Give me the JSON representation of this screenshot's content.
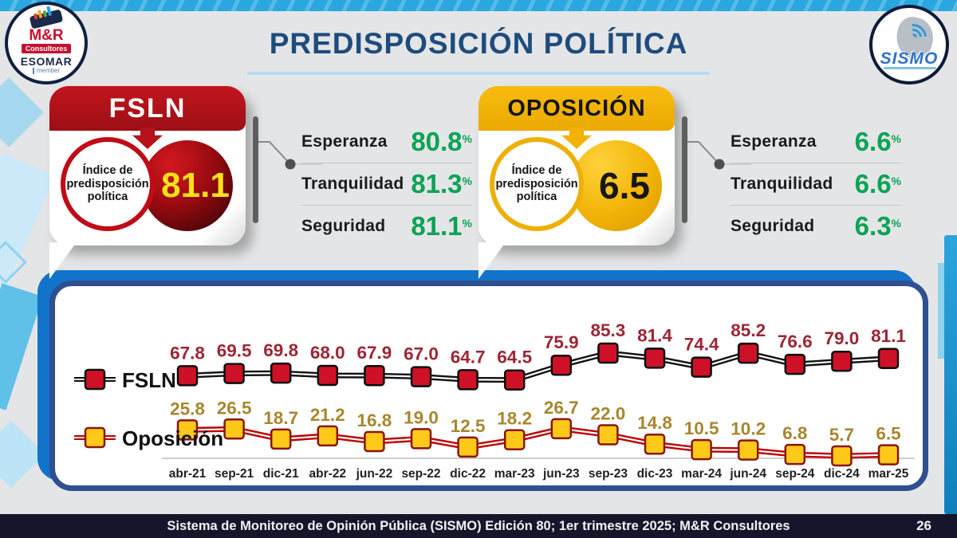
{
  "header": {
    "title": "PREDISPOSICIÓN POLÍTICA"
  },
  "logos": {
    "mr": {
      "name": "M&R",
      "line2": "Consultores",
      "line3": "ESOMAR",
      "line4": "member"
    },
    "sismo": {
      "name": "SISMO"
    }
  },
  "cards": {
    "fsln": {
      "title": "FSLN",
      "index_label": "Índice de predisposición política",
      "index_value": "81.1",
      "stats": [
        {
          "label": "Esperanza",
          "value": "80.8",
          "unit": "%"
        },
        {
          "label": "Tranquilidad",
          "value": "81.3",
          "unit": "%"
        },
        {
          "label": "Seguridad",
          "value": "81.1",
          "unit": "%"
        }
      ],
      "colors": {
        "primary": "#B5121B",
        "number": "#FFE11A"
      }
    },
    "oposicion": {
      "title": "OPOSICIÓN",
      "index_label": "Índice de predisposición política",
      "index_value": "6.5",
      "stats": [
        {
          "label": "Esperanza",
          "value": "6.6",
          "unit": "%"
        },
        {
          "label": "Tranquilidad",
          "value": "6.6",
          "unit": "%"
        },
        {
          "label": "Seguridad",
          "value": "6.3",
          "unit": "%"
        }
      ],
      "colors": {
        "primary": "#F2B306",
        "number": "#161616"
      }
    }
  },
  "chart_data": {
    "type": "line",
    "title": "",
    "xlabel": "",
    "ylabel": "",
    "grid": false,
    "legend_position": "left",
    "value_labels": true,
    "categories": [
      "abr-21",
      "sep-21",
      "dic-21",
      "abr-22",
      "jun-22",
      "sep-22",
      "dic-22",
      "mar-23",
      "jun-23",
      "sep-23",
      "dic-23",
      "mar-24",
      "jun-24",
      "sep-24",
      "dic-24",
      "mar-25"
    ],
    "series": [
      {
        "name": "FSLN",
        "values": [
          67.8,
          69.5,
          69.8,
          68.0,
          67.9,
          67.0,
          64.7,
          64.5,
          75.9,
          85.3,
          81.4,
          74.4,
          85.2,
          76.6,
          79.0,
          81.1
        ],
        "line_color": "#111111",
        "marker_color": "#CE1126",
        "marker_stroke": "#0D0D0D",
        "label_color": "#9E2433"
      },
      {
        "name": "Oposición",
        "values": [
          25.8,
          26.5,
          18.7,
          21.2,
          16.8,
          19.0,
          12.5,
          18.2,
          26.7,
          22.0,
          14.8,
          10.5,
          10.2,
          6.8,
          5.7,
          6.5
        ],
        "line_color": "#C00000",
        "marker_color": "#FFC91A",
        "marker_stroke": "#8A1508",
        "label_color": "#A8862D"
      }
    ]
  },
  "footer": {
    "text": "Sistema de Monitoreo de Opinión Pública (SISMO) Edición 80; 1er trimestre 2025; M&R Consultores",
    "page": "26"
  }
}
